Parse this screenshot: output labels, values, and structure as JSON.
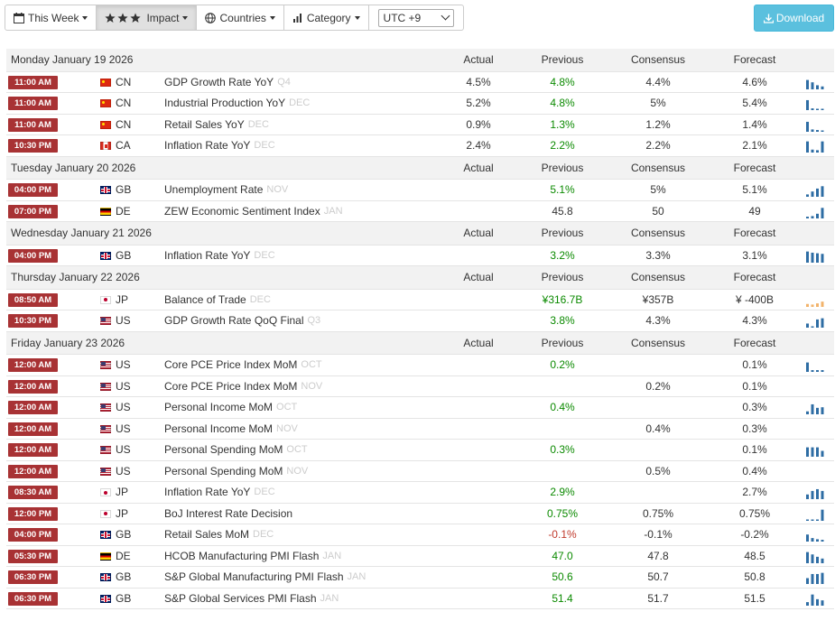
{
  "toolbar": {
    "this_week": "This Week",
    "impact": "Impact",
    "countries": "Countries",
    "category": "Category",
    "timezone": "UTC +9",
    "download": "Download"
  },
  "columns": {
    "actual": "Actual",
    "previous": "Previous",
    "consensus": "Consensus",
    "forecast": "Forecast"
  },
  "colors": {
    "time_badge": "#a83234",
    "positive": "#0b8a00",
    "negative": "#c0392b",
    "spark": "#2e6da4",
    "download": "#5bc0de"
  },
  "days": [
    {
      "label": "Monday January 19 2026",
      "events": [
        {
          "time": "11:00 AM",
          "flag": "cn",
          "country": "CN",
          "name": "GDP Growth Rate YoY",
          "period": "Q4",
          "actual": "4.5%",
          "previous": "4.8%",
          "prev_color": "green",
          "consensus": "4.4%",
          "forecast": "4.6%",
          "spark": [
            0.8,
            0.6,
            0.35,
            0.25
          ],
          "spark_color": "#2e6da4"
        },
        {
          "time": "11:00 AM",
          "flag": "cn",
          "country": "CN",
          "name": "Industrial Production YoY",
          "period": "DEC",
          "actual": "5.2%",
          "previous": "4.8%",
          "prev_color": "green",
          "consensus": "5%",
          "forecast": "5.4%",
          "spark": [
            0.85,
            0.15,
            0.1,
            0.1
          ],
          "spark_color": "#2e6da4"
        },
        {
          "time": "11:00 AM",
          "flag": "cn",
          "country": "CN",
          "name": "Retail Sales YoY",
          "period": "DEC",
          "actual": "0.9%",
          "previous": "1.3%",
          "prev_color": "green",
          "consensus": "1.2%",
          "forecast": "1.4%",
          "spark": [
            0.85,
            0.2,
            0.15,
            0.1
          ],
          "spark_color": "#2e6da4"
        },
        {
          "time": "10:30 PM",
          "flag": "ca",
          "country": "CA",
          "name": "Inflation Rate YoY",
          "period": "DEC",
          "actual": "2.4%",
          "previous": "2.2%",
          "prev_color": "green",
          "consensus": "2.2%",
          "forecast": "2.1%",
          "spark": [
            0.95,
            0.25,
            0.2,
            0.95
          ],
          "spark_color": "#2e6da4"
        }
      ]
    },
    {
      "label": "Tuesday January 20 2026",
      "events": [
        {
          "time": "04:00 PM",
          "flag": "gb",
          "country": "GB",
          "name": "Unemployment Rate",
          "period": "NOV",
          "actual": "",
          "previous": "5.1%",
          "prev_color": "green",
          "consensus": "5%",
          "forecast": "5.1%",
          "spark": [
            0.2,
            0.45,
            0.7,
            0.9
          ],
          "spark_color": "#2e6da4"
        },
        {
          "time": "07:00 PM",
          "flag": "de",
          "country": "DE",
          "name": "ZEW Economic Sentiment Index",
          "period": "JAN",
          "actual": "",
          "previous": "45.8",
          "prev_color": "",
          "consensus": "50",
          "forecast": "49",
          "spark": [
            0.15,
            0.2,
            0.4,
            0.9
          ],
          "spark_color": "#2e6da4"
        }
      ]
    },
    {
      "label": "Wednesday January 21 2026",
      "events": [
        {
          "time": "04:00 PM",
          "flag": "gb",
          "country": "GB",
          "name": "Inflation Rate YoY",
          "period": "DEC",
          "actual": "",
          "previous": "3.2%",
          "prev_color": "green",
          "consensus": "3.3%",
          "forecast": "3.1%",
          "spark": [
            0.95,
            0.85,
            0.8,
            0.75
          ],
          "spark_color": "#2e6da4"
        }
      ]
    },
    {
      "label": "Thursday January 22 2026",
      "events": [
        {
          "time": "08:50 AM",
          "flag": "jp",
          "country": "JP",
          "name": "Balance of Trade",
          "period": "DEC",
          "actual": "",
          "previous": "¥316.7B",
          "prev_color": "green",
          "consensus": "¥357B",
          "forecast": "¥ -400B",
          "spark": [
            0.25,
            0.2,
            0.3,
            0.45
          ],
          "spark_color": "#f2b36b"
        },
        {
          "time": "10:30 PM",
          "flag": "us",
          "country": "US",
          "name": "GDP Growth Rate QoQ Final",
          "period": "Q3",
          "actual": "",
          "previous": "3.8%",
          "prev_color": "green",
          "consensus": "4.3%",
          "forecast": "4.3%",
          "spark": [
            0.35,
            0.1,
            0.7,
            0.8
          ],
          "spark_color": "#2e6da4"
        }
      ]
    },
    {
      "label": "Friday January 23 2026",
      "events": [
        {
          "time": "12:00 AM",
          "flag": "us",
          "country": "US",
          "name": "Core PCE Price Index MoM",
          "period": "OCT",
          "actual": "",
          "previous": "0.2%",
          "prev_color": "green",
          "consensus": "",
          "forecast": "0.1%",
          "spark": [
            0.8,
            0.15,
            0.15,
            0.15
          ],
          "spark_color": "#2e6da4"
        },
        {
          "time": "12:00 AM",
          "flag": "us",
          "country": "US",
          "name": "Core PCE Price Index MoM",
          "period": "NOV",
          "actual": "",
          "previous": "",
          "prev_color": "",
          "consensus": "0.2%",
          "forecast": "0.1%",
          "spark": [],
          "spark_color": "#2e6da4"
        },
        {
          "time": "12:00 AM",
          "flag": "us",
          "country": "US",
          "name": "Personal Income MoM",
          "period": "OCT",
          "actual": "",
          "previous": "0.4%",
          "prev_color": "green",
          "consensus": "",
          "forecast": "0.3%",
          "spark": [
            0.25,
            0.85,
            0.55,
            0.6
          ],
          "spark_color": "#2e6da4"
        },
        {
          "time": "12:00 AM",
          "flag": "us",
          "country": "US",
          "name": "Personal Income MoM",
          "period": "NOV",
          "actual": "",
          "previous": "",
          "prev_color": "",
          "consensus": "0.4%",
          "forecast": "0.3%",
          "spark": [],
          "spark_color": "#2e6da4"
        },
        {
          "time": "12:00 AM",
          "flag": "us",
          "country": "US",
          "name": "Personal Spending MoM",
          "period": "OCT",
          "actual": "",
          "previous": "0.3%",
          "prev_color": "green",
          "consensus": "",
          "forecast": "0.1%",
          "spark": [
            0.8,
            0.8,
            0.8,
            0.5
          ],
          "spark_color": "#2e6da4"
        },
        {
          "time": "12:00 AM",
          "flag": "us",
          "country": "US",
          "name": "Personal Spending MoM",
          "period": "NOV",
          "actual": "",
          "previous": "",
          "prev_color": "",
          "consensus": "0.5%",
          "forecast": "0.4%",
          "spark": [],
          "spark_color": "#2e6da4"
        },
        {
          "time": "08:30 AM",
          "flag": "jp",
          "country": "JP",
          "name": "Inflation Rate YoY",
          "period": "DEC",
          "actual": "",
          "previous": "2.9%",
          "prev_color": "green",
          "consensus": "",
          "forecast": "2.7%",
          "spark": [
            0.4,
            0.7,
            0.85,
            0.7
          ],
          "spark_color": "#2e6da4"
        },
        {
          "time": "12:00 PM",
          "flag": "jp",
          "country": "JP",
          "name": "BoJ Interest Rate Decision",
          "period": "",
          "actual": "",
          "previous": "0.75%",
          "prev_color": "green",
          "consensus": "0.75%",
          "forecast": "0.75%",
          "spark": [
            0.1,
            0.1,
            0.1,
            0.95
          ],
          "spark_color": "#2e6da4"
        },
        {
          "time": "04:00 PM",
          "flag": "gb",
          "country": "GB",
          "name": "Retail Sales MoM",
          "period": "DEC",
          "actual": "",
          "previous": "-0.1%",
          "prev_color": "red",
          "consensus": "-0.1%",
          "forecast": "-0.2%",
          "spark": [
            0.6,
            0.3,
            0.2,
            0.15
          ],
          "spark_color": "#2e6da4"
        },
        {
          "time": "05:30 PM",
          "flag": "de",
          "country": "DE",
          "name": "HCOB Manufacturing PMI Flash",
          "period": "JAN",
          "actual": "",
          "previous": "47.0",
          "prev_color": "green",
          "consensus": "47.8",
          "forecast": "48.5",
          "spark": [
            0.95,
            0.75,
            0.55,
            0.4
          ],
          "spark_color": "#2e6da4"
        },
        {
          "time": "06:30 PM",
          "flag": "gb",
          "country": "GB",
          "name": "S&P Global Manufacturing PMI Flash",
          "period": "JAN",
          "actual": "",
          "previous": "50.6",
          "prev_color": "green",
          "consensus": "50.7",
          "forecast": "50.8",
          "spark": [
            0.5,
            0.85,
            0.85,
            0.95
          ],
          "spark_color": "#2e6da4"
        },
        {
          "time": "06:30 PM",
          "flag": "gb",
          "country": "GB",
          "name": "S&P Global Services PMI Flash",
          "period": "JAN",
          "actual": "",
          "previous": "51.4",
          "prev_color": "green",
          "consensus": "51.7",
          "forecast": "51.5",
          "spark": [
            0.3,
            0.95,
            0.55,
            0.45
          ],
          "spark_color": "#2e6da4"
        }
      ]
    }
  ]
}
